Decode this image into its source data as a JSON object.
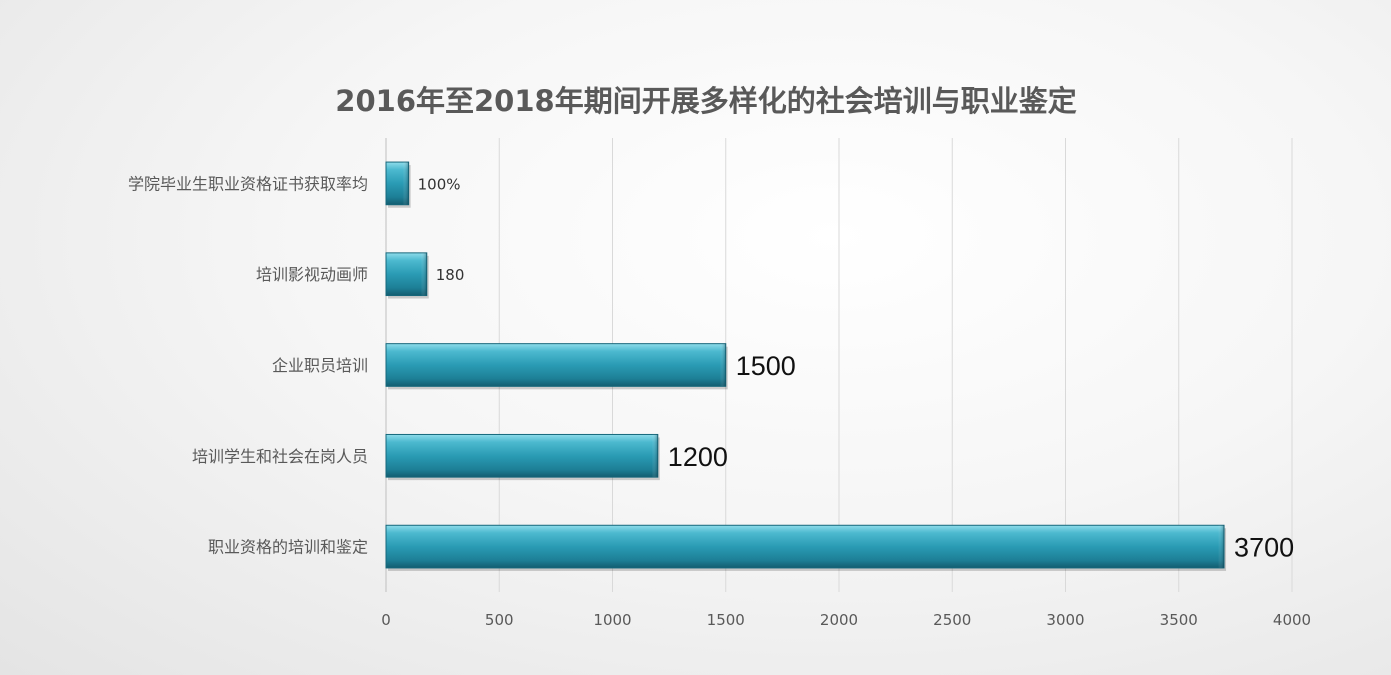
{
  "chart_data": {
    "type": "bar",
    "orientation": "horizontal",
    "title": "2016年至2018年期间开展多样化的社会培训与职业鉴定",
    "categories": [
      "学院毕业生职业资格证书获取率均",
      "培训影视动画师",
      "企业职员培训",
      "培训学生和社会在岗人员",
      "职业资格的培训和鉴定"
    ],
    "values": [
      100,
      180,
      1500,
      1200,
      3700
    ],
    "data_labels": [
      "100%",
      "180",
      "1500",
      "1200",
      "3700"
    ],
    "xlim": [
      0,
      4000
    ],
    "x_ticks": [
      0,
      500,
      1000,
      1500,
      2000,
      2500,
      3000,
      3500,
      4000
    ],
    "grid": true,
    "legend": "none",
    "bar_color": "#2a9bb4",
    "xlabel": "",
    "ylabel": ""
  }
}
